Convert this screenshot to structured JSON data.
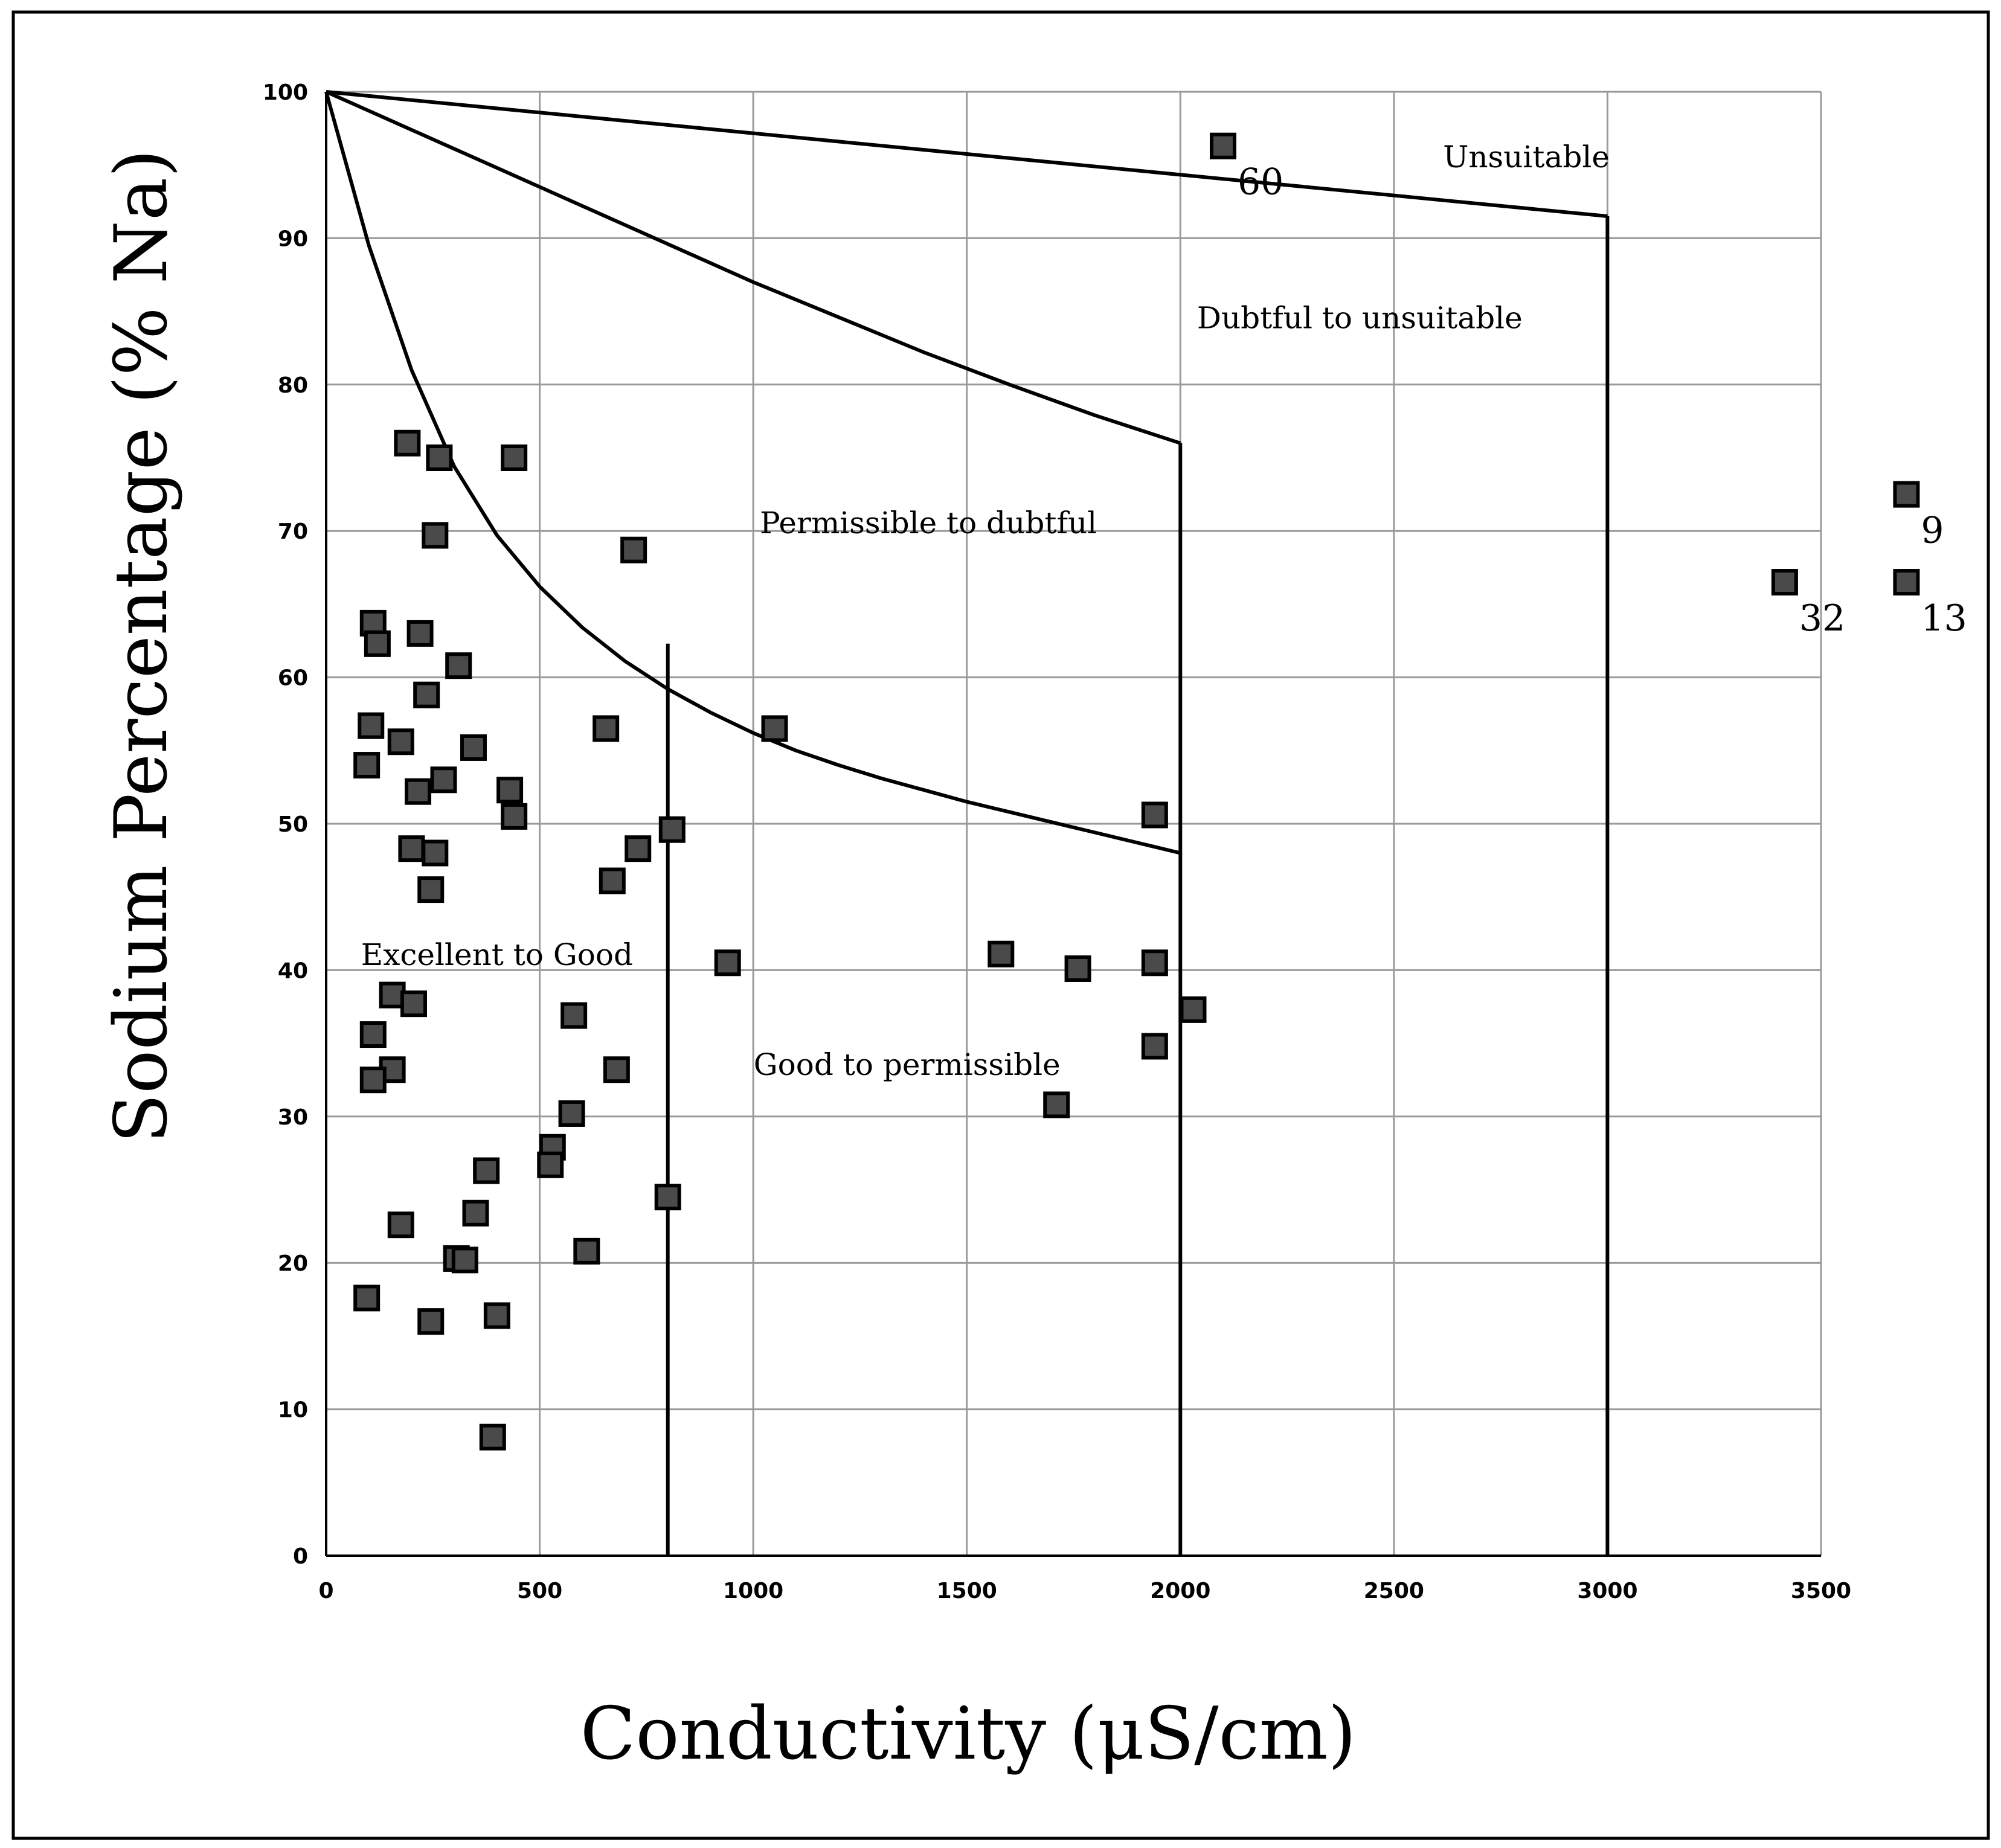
{
  "chart_data": {
    "type": "scatter",
    "xlabel": "Conductivity (μS/cm)",
    "ylabel": "Sodium Percentage (% Na)",
    "xlim": [
      0,
      3500
    ],
    "ylim": [
      0,
      100
    ],
    "x_ticks": [
      0,
      500,
      1000,
      1500,
      2000,
      2500,
      3000,
      3500
    ],
    "y_ticks": [
      0,
      10,
      20,
      30,
      40,
      50,
      60,
      70,
      80,
      90,
      100
    ],
    "grid": true,
    "zones": [
      {
        "label": "Excellent to Good",
        "x": 400,
        "y": 41
      },
      {
        "label": "Good to permissible",
        "x": 1360,
        "y": 33.5
      },
      {
        "label": "Permissible to dubtful",
        "x": 1410,
        "y": 70.5
      },
      {
        "label": "Dubtful to unsuitable",
        "x": 2420,
        "y": 84.5
      },
      {
        "label": "Unsuitable",
        "x": 2810,
        "y": 95.5
      }
    ],
    "boundaries": [
      {
        "x": [
          0,
          100,
          200,
          300,
          400,
          500,
          600,
          700,
          800,
          900,
          1000,
          1100,
          1200,
          1300,
          1400,
          1500,
          1600,
          1700,
          1800,
          1900,
          2000
        ],
        "y": [
          100,
          89.5,
          81,
          74.4,
          69.7,
          66.2,
          63.4,
          61.1,
          59.2,
          57.6,
          56.2,
          55,
          54,
          53.1,
          52.3,
          51.5,
          50.8,
          50.1,
          49.4,
          48.7,
          48
        ]
      },
      {
        "x": [
          0,
          200,
          400,
          600,
          800,
          1000,
          1200,
          1400,
          1600,
          1800,
          2000
        ],
        "y": [
          100,
          97.4,
          94.8,
          92.2,
          89.6,
          87,
          84.6,
          82.2,
          80,
          77.9,
          76
        ]
      },
      {
        "x": [
          0,
          3000
        ],
        "y": [
          100,
          91.5
        ]
      },
      {
        "x": [
          800,
          800
        ],
        "y": [
          0,
          62.3
        ]
      },
      {
        "x": [
          2000,
          2000
        ],
        "y": [
          0,
          76
        ]
      },
      {
        "x": [
          3000,
          3000
        ],
        "y": [
          0,
          91.5
        ]
      }
    ],
    "series": [
      {
        "marker": "square",
        "color": "#4a4a4a",
        "points": [
          {
            "x": 190,
            "y": 76
          },
          {
            "x": 265,
            "y": 75
          },
          {
            "x": 440,
            "y": 75
          },
          {
            "x": 255,
            "y": 69.7
          },
          {
            "x": 720,
            "y": 68.7
          },
          {
            "x": 110,
            "y": 63.7
          },
          {
            "x": 120,
            "y": 62.3
          },
          {
            "x": 220,
            "y": 63
          },
          {
            "x": 310,
            "y": 60.8
          },
          {
            "x": 235,
            "y": 58.8
          },
          {
            "x": 105,
            "y": 56.7
          },
          {
            "x": 175,
            "y": 55.6
          },
          {
            "x": 345,
            "y": 55.2
          },
          {
            "x": 95,
            "y": 54
          },
          {
            "x": 275,
            "y": 53
          },
          {
            "x": 215,
            "y": 52.2
          },
          {
            "x": 430,
            "y": 52.3
          },
          {
            "x": 440,
            "y": 50.5
          },
          {
            "x": 655,
            "y": 56.5
          },
          {
            "x": 1050,
            "y": 56.5
          },
          {
            "x": 810,
            "y": 49.6
          },
          {
            "x": 200,
            "y": 48.3
          },
          {
            "x": 255,
            "y": 48
          },
          {
            "x": 730,
            "y": 48.3
          },
          {
            "x": 670,
            "y": 46.1
          },
          {
            "x": 245,
            "y": 45.5
          },
          {
            "x": 1940,
            "y": 50.6
          },
          {
            "x": 940,
            "y": 40.5
          },
          {
            "x": 1580,
            "y": 41.1
          },
          {
            "x": 1760,
            "y": 40.1
          },
          {
            "x": 1940,
            "y": 40.5
          },
          {
            "x": 155,
            "y": 38.3
          },
          {
            "x": 205,
            "y": 37.7
          },
          {
            "x": 580,
            "y": 36.9
          },
          {
            "x": 2030,
            "y": 37.3
          },
          {
            "x": 110,
            "y": 35.6
          },
          {
            "x": 155,
            "y": 33.2
          },
          {
            "x": 110,
            "y": 32.5
          },
          {
            "x": 680,
            "y": 33.2
          },
          {
            "x": 1940,
            "y": 34.8
          },
          {
            "x": 1710,
            "y": 30.8
          },
          {
            "x": 575,
            "y": 30.2
          },
          {
            "x": 530,
            "y": 27.9
          },
          {
            "x": 525,
            "y": 26.7
          },
          {
            "x": 375,
            "y": 26.3
          },
          {
            "x": 800,
            "y": 24.5
          },
          {
            "x": 350,
            "y": 23.4
          },
          {
            "x": 175,
            "y": 22.6
          },
          {
            "x": 610,
            "y": 20.8
          },
          {
            "x": 305,
            "y": 20.3
          },
          {
            "x": 325,
            "y": 20.2
          },
          {
            "x": 95,
            "y": 17.6
          },
          {
            "x": 400,
            "y": 16.4
          },
          {
            "x": 245,
            "y": 16
          },
          {
            "x": 390,
            "y": 8.1
          },
          {
            "x": 2100,
            "y": 96.3,
            "label": "60"
          },
          {
            "x": 3700,
            "y": 72.5,
            "label": "9"
          },
          {
            "x": 3415,
            "y": 66.5,
            "label": "32"
          },
          {
            "x": 3700,
            "y": 66.5,
            "label": "13"
          }
        ]
      }
    ]
  }
}
